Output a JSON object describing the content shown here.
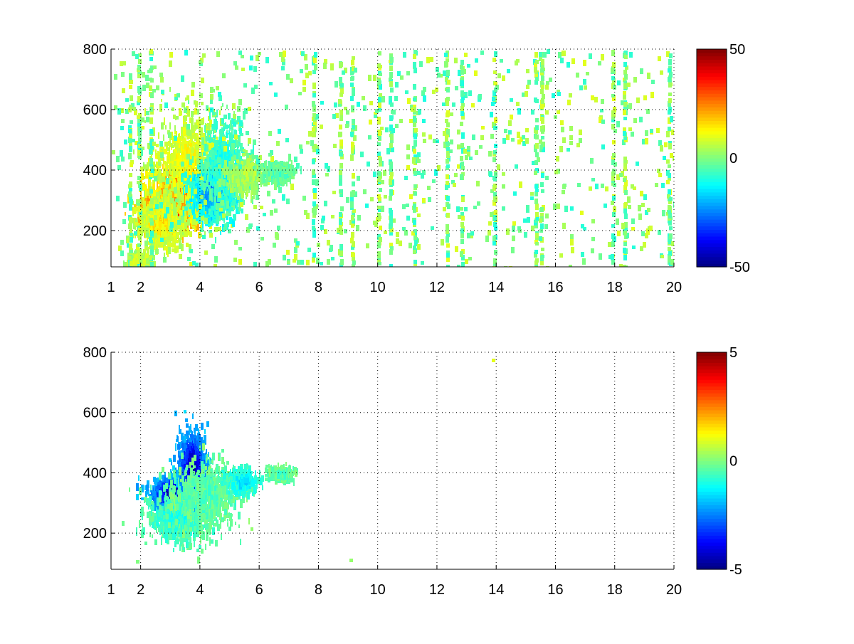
{
  "figure": {
    "background": "#ffffff",
    "colormap": "jet",
    "colormap_stops": [
      "#00008f",
      "#0000ff",
      "#00ffff",
      "#ffff00",
      "#ff0000",
      "#800000"
    ]
  },
  "chart_data": [
    {
      "type": "heatmap",
      "title": "",
      "xlabel": "",
      "ylabel": "",
      "xlim": [
        1,
        20
      ],
      "ylim": [
        80,
        800
      ],
      "x_ticks": [
        "1",
        "2",
        "4",
        "6",
        "8",
        "10",
        "12",
        "14",
        "16",
        "18",
        "20"
      ],
      "x_tick_values": [
        1,
        2,
        4,
        6,
        8,
        10,
        12,
        14,
        16,
        18,
        20
      ],
      "y_ticks": [
        "200",
        "400",
        "600",
        "800"
      ],
      "y_tick_values": [
        200,
        400,
        600,
        800
      ],
      "grid": true,
      "clim": [
        -50,
        50
      ],
      "colorbar": {
        "ticks": [
          "50",
          "0",
          "-50"
        ],
        "tick_values": [
          50,
          0,
          -50
        ],
        "placement": "right"
      },
      "features": [
        {
          "x": 3.0,
          "y": 280,
          "value": 40,
          "sx": 0.5,
          "sy": 35,
          "weight": 1.0,
          "note": "red core"
        },
        {
          "x": 3.3,
          "y": 340,
          "value": 25,
          "sx": 0.55,
          "sy": 55,
          "weight": 0.9
        },
        {
          "x": 3.6,
          "y": 430,
          "value": 12,
          "sx": 0.6,
          "sy": 90,
          "weight": 0.9
        },
        {
          "x": 2.6,
          "y": 230,
          "value": 15,
          "sx": 0.35,
          "sy": 40,
          "weight": 0.8
        },
        {
          "x": 4.4,
          "y": 330,
          "value": -25,
          "sx": 0.35,
          "sy": 45,
          "weight": 0.9
        },
        {
          "x": 4.8,
          "y": 420,
          "value": -12,
          "sx": 0.35,
          "sy": 70,
          "weight": 0.8
        },
        {
          "x": 5.5,
          "y": 390,
          "value": 5,
          "sx": 0.3,
          "sy": 25,
          "weight": 0.6
        },
        {
          "x": 6.6,
          "y": 400,
          "value": -5,
          "sx": 0.25,
          "sy": 15,
          "weight": 0.5
        },
        {
          "x": 1.9,
          "y": 100,
          "value": 10,
          "sx": 0.15,
          "sy": 15,
          "weight": 0.6
        }
      ],
      "background_noise": {
        "value_range": [
          -10,
          10
        ],
        "density": 0.12,
        "x_range": [
          1,
          20
        ]
      },
      "streak_columns": [
        1.6,
        1.9,
        2.3,
        7.8,
        8.7,
        9.1,
        10.0,
        10.4,
        11.2,
        12.3,
        12.8,
        13.9,
        15.3,
        15.5,
        17.9,
        18.3,
        19.8
      ]
    },
    {
      "type": "heatmap",
      "title": "",
      "xlabel": "",
      "ylabel": "",
      "xlim": [
        1,
        20
      ],
      "ylim": [
        80,
        800
      ],
      "x_ticks": [
        "1",
        "2",
        "4",
        "6",
        "8",
        "10",
        "12",
        "14",
        "16",
        "18",
        "20"
      ],
      "x_tick_values": [
        1,
        2,
        4,
        6,
        8,
        10,
        12,
        14,
        16,
        18,
        20
      ],
      "y_ticks": [
        "200",
        "400",
        "600",
        "800"
      ],
      "y_tick_values": [
        200,
        400,
        600,
        800
      ],
      "grid": true,
      "clim": [
        -5,
        5
      ],
      "colorbar": {
        "ticks": [
          "5",
          "0",
          "-5"
        ],
        "tick_values": [
          5,
          0,
          -5
        ],
        "placement": "right"
      },
      "features": [
        {
          "x": 3.1,
          "y": 340,
          "value": -4.8,
          "sx": 0.4,
          "sy": 25,
          "weight": 1.0,
          "note": "dark blue band"
        },
        {
          "x": 3.7,
          "y": 430,
          "value": -4.5,
          "sx": 0.25,
          "sy": 60,
          "weight": 0.9
        },
        {
          "x": 3.3,
          "y": 260,
          "value": -1.0,
          "sx": 0.55,
          "sy": 40,
          "weight": 0.8
        },
        {
          "x": 4.2,
          "y": 330,
          "value": -0.5,
          "sx": 0.5,
          "sy": 55,
          "weight": 0.8
        },
        {
          "x": 5.4,
          "y": 380,
          "value": -1.5,
          "sx": 0.25,
          "sy": 20,
          "weight": 0.5
        },
        {
          "x": 6.7,
          "y": 405,
          "value": -0.5,
          "sx": 0.2,
          "sy": 10,
          "weight": 0.4
        }
      ],
      "isolated_points": [
        {
          "x": 13.9,
          "y": 775,
          "value": 1.0
        },
        {
          "x": 1.9,
          "y": 105,
          "value": 0.0
        },
        {
          "x": 9.1,
          "y": 110,
          "value": 0.2
        }
      ]
    }
  ]
}
